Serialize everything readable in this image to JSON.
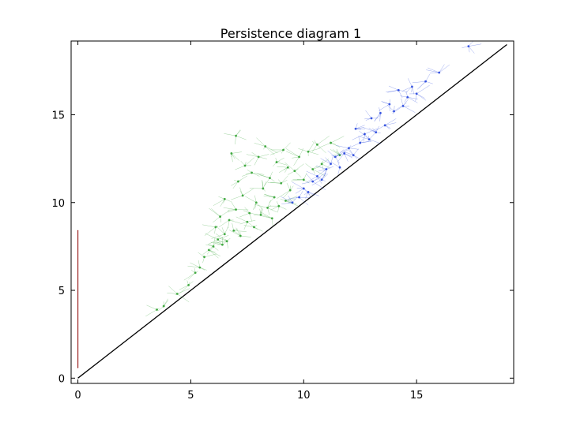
{
  "chart_data": {
    "type": "scatter",
    "title": "Persistence diagram 1",
    "xlabel": "",
    "ylabel": "",
    "xlim": [
      -0.3,
      19.3
    ],
    "ylim": [
      -0.3,
      19.2
    ],
    "x_ticks": [
      0,
      5,
      10,
      15
    ],
    "y_ticks": [
      0,
      5,
      10,
      15
    ],
    "x_tick_labels": [
      "0",
      "5",
      "10",
      "15"
    ],
    "y_tick_labels": [
      "0",
      "5",
      "10",
      "15"
    ],
    "grid": false,
    "legend": "none",
    "reference_line": {
      "from": [
        0,
        0
      ],
      "to": [
        19,
        19
      ],
      "color": "#000000"
    },
    "series": [
      {
        "dimension": 0,
        "color": "#8b0000",
        "note_kind": "vertical-stripe",
        "points": [
          [
            0,
            0.6
          ],
          [
            0,
            8.4
          ]
        ]
      },
      {
        "dimension": 1,
        "color": "#2ca02c",
        "points": [
          [
            3.5,
            3.9
          ],
          [
            3.8,
            4.1
          ],
          [
            4.4,
            4.8
          ],
          [
            4.9,
            5.3
          ],
          [
            5.2,
            6.0
          ],
          [
            5.4,
            6.3
          ],
          [
            5.6,
            6.9
          ],
          [
            5.8,
            7.3
          ],
          [
            6.0,
            7.5
          ],
          [
            6.1,
            8.6
          ],
          [
            6.2,
            7.9
          ],
          [
            6.3,
            9.2
          ],
          [
            6.4,
            7.6
          ],
          [
            6.5,
            8.2
          ],
          [
            6.5,
            10.2
          ],
          [
            6.6,
            7.8
          ],
          [
            6.7,
            9.0
          ],
          [
            6.8,
            12.8
          ],
          [
            6.9,
            8.4
          ],
          [
            7.0,
            13.8
          ],
          [
            7.0,
            9.6
          ],
          [
            7.1,
            11.2
          ],
          [
            7.2,
            8.1
          ],
          [
            7.3,
            10.4
          ],
          [
            7.4,
            12.1
          ],
          [
            7.5,
            8.9
          ],
          [
            7.6,
            9.4
          ],
          [
            7.7,
            11.7
          ],
          [
            7.8,
            8.6
          ],
          [
            7.9,
            10.0
          ],
          [
            8.0,
            12.6
          ],
          [
            8.1,
            9.3
          ],
          [
            8.2,
            10.8
          ],
          [
            8.3,
            13.2
          ],
          [
            8.4,
            9.7
          ],
          [
            8.5,
            11.4
          ],
          [
            8.6,
            9.1
          ],
          [
            8.7,
            10.3
          ],
          [
            8.8,
            12.3
          ],
          [
            8.9,
            9.8
          ],
          [
            9.0,
            11.1
          ],
          [
            9.1,
            13.0
          ],
          [
            9.2,
            10.1
          ],
          [
            9.3,
            12.0
          ],
          [
            9.4,
            10.7
          ],
          [
            9.6,
            11.8
          ],
          [
            9.8,
            12.6
          ],
          [
            10.0,
            11.3
          ],
          [
            10.2,
            12.9
          ],
          [
            10.4,
            11.9
          ],
          [
            10.6,
            13.3
          ],
          [
            10.8,
            12.2
          ],
          [
            11.2,
            13.4
          ],
          [
            11.6,
            12.7
          ]
        ]
      },
      {
        "dimension": 2,
        "color": "#1f3fdc",
        "points": [
          [
            9.5,
            10.0
          ],
          [
            9.8,
            10.3
          ],
          [
            10.0,
            10.8
          ],
          [
            10.2,
            10.6
          ],
          [
            10.4,
            11.2
          ],
          [
            10.6,
            11.5
          ],
          [
            10.8,
            11.3
          ],
          [
            11.0,
            11.9
          ],
          [
            11.2,
            12.2
          ],
          [
            11.4,
            12.6
          ],
          [
            11.6,
            12.0
          ],
          [
            11.8,
            12.8
          ],
          [
            12.0,
            13.1
          ],
          [
            12.2,
            12.7
          ],
          [
            12.3,
            14.2
          ],
          [
            12.5,
            13.4
          ],
          [
            12.7,
            13.9
          ],
          [
            12.9,
            13.6
          ],
          [
            13.0,
            14.8
          ],
          [
            13.2,
            14.0
          ],
          [
            13.4,
            15.1
          ],
          [
            13.6,
            14.4
          ],
          [
            13.8,
            15.6
          ],
          [
            14.0,
            15.2
          ],
          [
            14.2,
            16.4
          ],
          [
            14.4,
            15.5
          ],
          [
            14.6,
            16.0
          ],
          [
            14.8,
            16.6
          ],
          [
            15.0,
            16.2
          ],
          [
            15.4,
            16.9
          ],
          [
            16.0,
            17.4
          ],
          [
            17.3,
            18.9
          ]
        ]
      }
    ]
  }
}
